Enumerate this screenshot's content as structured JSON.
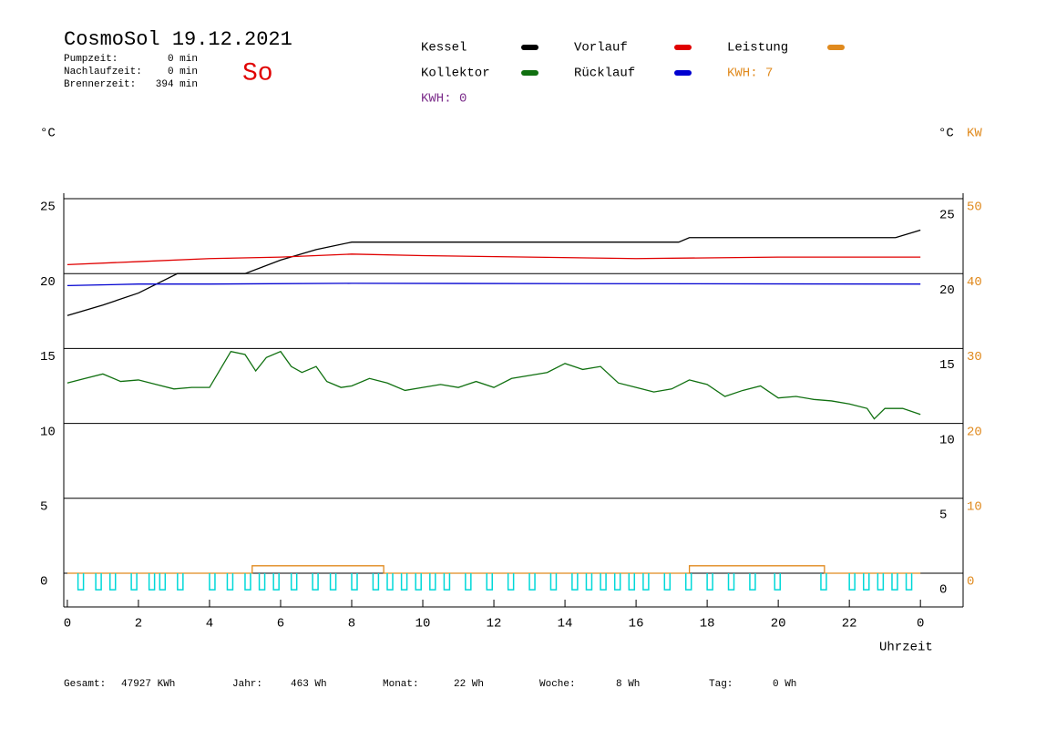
{
  "chart_data": {
    "type": "line",
    "title": "CosmoSol 19.12.2021",
    "day": "So",
    "info": [
      {
        "label": "Pumpzeit:",
        "value": "0 min"
      },
      {
        "label": "Nachlaufzeit:",
        "value": "0 min"
      },
      {
        "label": "Brennerzeit:",
        "value": "394 min"
      }
    ],
    "kwh_labels": [
      {
        "text": "KWH: 7",
        "color": "#e08a1e"
      },
      {
        "text": "KWH: 0",
        "color": "#7b2c8a"
      }
    ],
    "ylabel": "°C",
    "y2label_c": "°C",
    "y2label": "KW",
    "xlabel": "Uhrzeit",
    "xlim": [
      -0.1,
      25.2
    ],
    "xticks": [
      0,
      2,
      4,
      6,
      8,
      10,
      12,
      14,
      16,
      18,
      20,
      22,
      {
        "value": 24,
        "label": "0"
      }
    ],
    "ylim": [
      -2.25,
      25
    ],
    "yticks": [
      0,
      5,
      10,
      15,
      20,
      25
    ],
    "y2lim": [
      -4.5,
      50
    ],
    "y2ticks": [
      0,
      10,
      20,
      30,
      40,
      50
    ],
    "grid": true,
    "series": [
      {
        "name": "Kessel",
        "color": "#000000",
        "x": [
          0,
          1,
          2,
          3.1,
          5.0,
          6.0,
          7.0,
          8.0,
          17.2,
          17.5,
          23.3,
          24
        ],
        "values": [
          17.2,
          17.9,
          18.7,
          20.0,
          20.0,
          20.9,
          21.6,
          22.1,
          22.1,
          22.4,
          22.4,
          22.9
        ]
      },
      {
        "name": "Vorlauf",
        "color": "#e00000",
        "x": [
          0,
          2,
          4,
          6,
          8,
          10,
          16,
          20,
          24
        ],
        "values": [
          20.6,
          20.8,
          21.0,
          21.1,
          21.3,
          21.2,
          21.0,
          21.1,
          21.1
        ]
      },
      {
        "name": "Leistung",
        "color": "#e08a1e",
        "axis": "y2",
        "x": [
          0,
          5.2,
          5.2,
          8.9,
          8.9,
          17.5,
          17.5,
          21.3,
          21.3,
          24
        ],
        "values": [
          0,
          0,
          1,
          1,
          0,
          0,
          1,
          1,
          0,
          0
        ]
      },
      {
        "name": "Kollektor",
        "color": "#107010",
        "x": [
          0,
          0.5,
          1,
          1.5,
          2,
          2.5,
          3,
          3.5,
          4,
          4.3,
          4.6,
          5,
          5.3,
          5.6,
          6,
          6.3,
          6.6,
          7,
          7.3,
          7.7,
          8,
          8.5,
          9,
          9.5,
          10,
          10.5,
          11,
          11.5,
          12,
          12.5,
          13,
          13.5,
          14,
          14.5,
          15,
          15.5,
          16,
          16.5,
          17,
          17.5,
          18,
          18.5,
          19,
          19.5,
          20,
          20.5,
          21,
          21.5,
          22,
          22.5,
          22.7,
          23,
          23.5,
          24
        ],
        "values": [
          12.7,
          13.0,
          13.3,
          12.8,
          12.9,
          12.6,
          12.3,
          12.4,
          12.4,
          13.6,
          14.8,
          14.6,
          13.5,
          14.4,
          14.8,
          13.8,
          13.4,
          13.8,
          12.8,
          12.4,
          12.5,
          13.0,
          12.7,
          12.2,
          12.4,
          12.6,
          12.4,
          12.8,
          12.4,
          13.0,
          13.2,
          13.4,
          14.0,
          13.6,
          13.8,
          12.7,
          12.4,
          12.1,
          12.3,
          12.9,
          12.6,
          11.8,
          12.2,
          12.5,
          11.7,
          11.8,
          11.6,
          11.5,
          11.3,
          11.0,
          10.3,
          11.0,
          11.0,
          10.6
        ]
      },
      {
        "name": "Rücklauf",
        "color": "#0000d0",
        "x": [
          0,
          2,
          4,
          8,
          24
        ],
        "values": [
          19.2,
          19.3,
          19.3,
          19.35,
          19.3
        ]
      },
      {
        "type": "pulse",
        "color": "#00d8d8",
        "x": [
          0.3,
          0.8,
          1.2,
          1.8,
          2.3,
          2.6,
          3.1,
          4.0,
          4.5,
          5.0,
          5.4,
          5.8,
          6.3,
          6.9,
          7.4,
          8.0,
          8.6,
          9.0,
          9.4,
          9.8,
          10.2,
          10.6,
          11.2,
          11.8,
          12.4,
          13.0,
          13.6,
          14.2,
          14.6,
          15.0,
          15.4,
          15.8,
          16.2,
          16.8,
          17.4,
          18.0,
          18.6,
          19.2,
          19.9,
          21.2,
          22.0,
          22.4,
          22.8,
          23.2,
          23.6
        ],
        "values": [
          -1.1,
          -1.1,
          -1.1,
          -1.1,
          -1.1,
          -1.1,
          -1.1,
          -1.1,
          -1.1,
          -1.1,
          -1.1,
          -1.1,
          -1.1,
          -1.1,
          -1.1,
          -1.1,
          -1.1,
          -1.1,
          -1.1,
          -1.1,
          -1.1,
          -1.1,
          -1.1,
          -1.1,
          -1.1,
          -1.1,
          -1.1,
          -1.1,
          -1.1,
          -1.1,
          -1.1,
          -1.1,
          -1.1,
          -1.1,
          -1.1,
          -1.1,
          -1.1,
          -1.1,
          -1.1,
          -1.1,
          -1.1,
          -1.1,
          -1.1,
          -1.1,
          -1.1
        ]
      }
    ],
    "footer": [
      {
        "label": "Gesamt:",
        "value": "47927 KWh"
      },
      {
        "label": "Jahr:",
        "value": "463 Wh"
      },
      {
        "label": "Monat:",
        "value": "22 Wh"
      },
      {
        "label": "Woche:",
        "value": "8 Wh"
      },
      {
        "label": "Tag:",
        "value": "0 Wh"
      }
    ]
  }
}
